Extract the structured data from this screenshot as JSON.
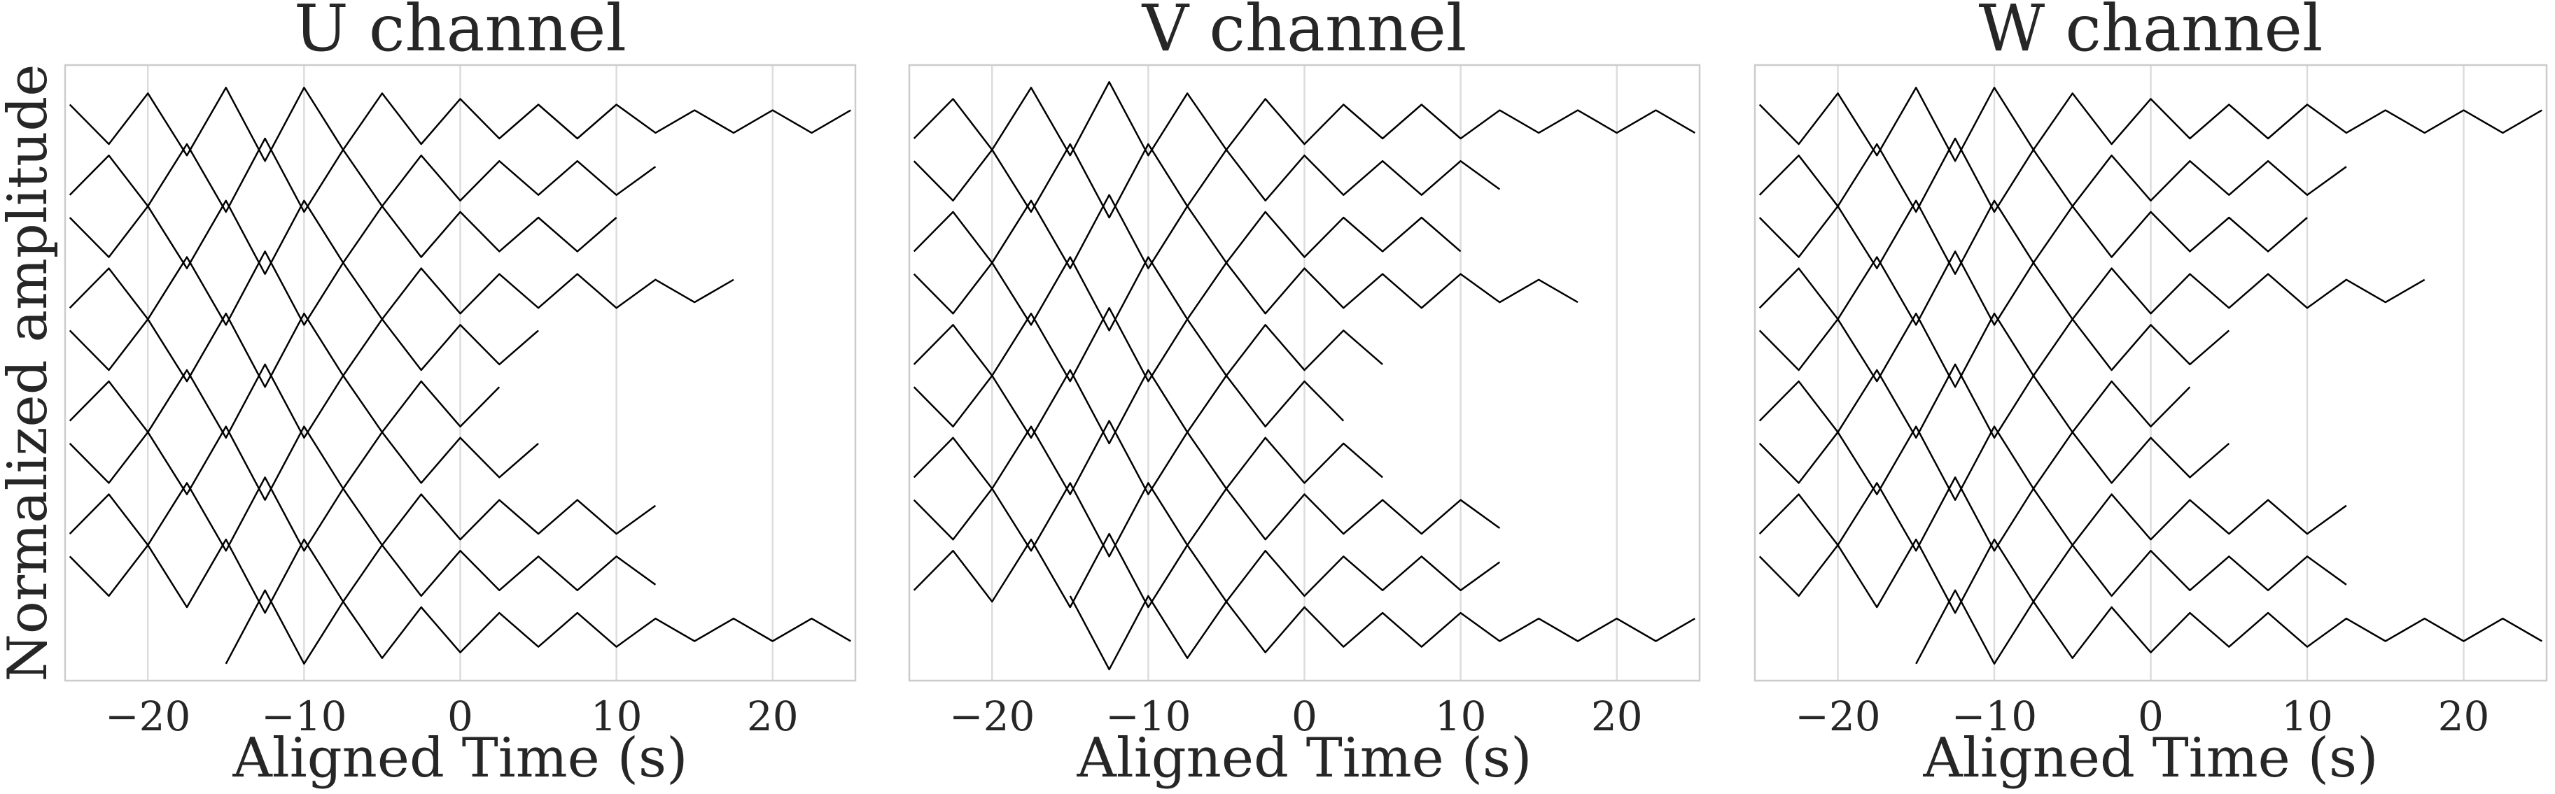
{
  "chart_data": [
    {
      "type": "line",
      "title": "U channel",
      "xlabel": "Aligned Time (s)",
      "ylabel": "Normalized amplitude",
      "xlim": [
        -25.3,
        25.3
      ],
      "ylim": [
        -0.9,
        10
      ],
      "grid": true,
      "xticks": [
        {
          "value": -20,
          "label": "−20"
        },
        {
          "value": -10,
          "label": "−10"
        },
        0,
        10,
        20
      ],
      "x": [
        -25,
        -22.5,
        -20,
        -17.5,
        -15,
        -12.5,
        -10,
        -7.5,
        -5,
        -2.5,
        0,
        2.5,
        5,
        7.5,
        10,
        12.5,
        15,
        17.5,
        20,
        22.5,
        25
      ],
      "series": [
        {
          "color": "#000000",
          "values": [
            9.3,
            8.6,
            9.5,
            8.4,
            9.6,
            8.3,
            9.6,
            8.5,
            9.5,
            8.6,
            9.4,
            8.7,
            9.3,
            8.7,
            9.3,
            8.8,
            9.2,
            8.8,
            9.2,
            8.8,
            9.2
          ]
        },
        {
          "color": "#000000",
          "values": [
            7.7,
            8.4,
            7.5,
            8.6,
            7.4,
            8.7,
            7.4,
            8.5,
            7.5,
            8.4,
            7.6,
            8.3,
            7.7,
            8.3,
            7.7,
            8.2,
            null,
            null,
            null,
            null,
            null
          ]
        },
        {
          "color": "#000000",
          "values": [
            7.3,
            6.6,
            7.5,
            6.4,
            7.6,
            6.3,
            7.6,
            6.5,
            7.5,
            6.6,
            7.4,
            6.7,
            7.3,
            6.7,
            7.3,
            null,
            null,
            null,
            null,
            null,
            null
          ]
        },
        {
          "color": "#000000",
          "values": [
            5.7,
            6.4,
            5.5,
            6.6,
            5.4,
            6.7,
            5.4,
            6.5,
            5.5,
            6.4,
            5.6,
            6.3,
            5.7,
            6.3,
            5.7,
            6.2,
            5.8,
            6.2,
            null,
            null,
            null
          ]
        },
        {
          "color": "#000000",
          "values": [
            5.3,
            4.6,
            5.5,
            4.4,
            5.6,
            4.3,
            5.6,
            4.5,
            5.5,
            4.6,
            5.4,
            4.7,
            5.3,
            null,
            null,
            null,
            null,
            null,
            null,
            null,
            null
          ]
        },
        {
          "color": "#000000",
          "values": [
            3.7,
            4.4,
            3.5,
            4.6,
            3.4,
            4.7,
            3.4,
            4.5,
            3.5,
            4.4,
            3.6,
            4.3,
            null,
            null,
            null,
            null,
            null,
            null,
            null,
            null,
            null
          ]
        },
        {
          "color": "#000000",
          "values": [
            3.3,
            2.6,
            3.5,
            2.4,
            3.6,
            2.3,
            3.6,
            2.5,
            3.5,
            2.6,
            3.4,
            2.7,
            3.3,
            null,
            null,
            null,
            null,
            null,
            null,
            null,
            null
          ]
        },
        {
          "color": "#000000",
          "values": [
            1.7,
            2.4,
            1.5,
            2.6,
            1.4,
            2.7,
            1.4,
            2.5,
            1.5,
            2.4,
            1.6,
            2.3,
            1.7,
            2.3,
            1.7,
            2.2,
            null,
            null,
            null,
            null,
            null
          ]
        },
        {
          "color": "#000000",
          "values": [
            1.3,
            0.6,
            1.5,
            0.4,
            1.6,
            0.3,
            1.6,
            0.5,
            1.5,
            0.6,
            1.4,
            0.7,
            1.3,
            0.7,
            1.3,
            0.8,
            null,
            null,
            null,
            null,
            null
          ]
        },
        {
          "color": "#000000",
          "values": [
            null,
            null,
            null,
            null,
            -0.6,
            0.7,
            -0.6,
            0.5,
            -0.5,
            0.4,
            -0.4,
            0.3,
            -0.3,
            0.3,
            -0.3,
            0.2,
            -0.2,
            0.2,
            -0.2,
            0.2,
            -0.2
          ]
        }
      ]
    },
    {
      "type": "line",
      "title": "V channel",
      "xlabel": "Aligned Time (s)",
      "xlim": [
        -25.3,
        25.3
      ],
      "ylim": [
        -0.9,
        10
      ],
      "grid": true,
      "xticks": [
        {
          "value": -20,
          "label": "−20"
        },
        {
          "value": -10,
          "label": "−10"
        },
        0,
        10,
        20
      ],
      "x": [
        -25,
        -22.5,
        -20,
        -17.5,
        -15,
        -12.5,
        -10,
        -7.5,
        -5,
        -2.5,
        0,
        2.5,
        5,
        7.5,
        10,
        12.5,
        15,
        17.5,
        20,
        22.5,
        25
      ],
      "series": [
        {
          "color": "#000000",
          "values": [
            8.7,
            9.4,
            8.5,
            9.6,
            8.4,
            9.7,
            8.4,
            9.5,
            8.5,
            9.4,
            8.6,
            9.3,
            8.7,
            9.3,
            8.7,
            9.2,
            8.8,
            9.2,
            8.8,
            9.2,
            8.8
          ]
        },
        {
          "color": "#000000",
          "values": [
            8.3,
            7.6,
            8.5,
            7.4,
            8.6,
            7.3,
            8.6,
            7.5,
            8.5,
            7.6,
            8.4,
            7.7,
            8.3,
            7.7,
            8.3,
            7.8,
            null,
            null,
            null,
            null,
            null
          ]
        },
        {
          "color": "#000000",
          "values": [
            6.7,
            7.4,
            6.5,
            7.6,
            6.4,
            7.7,
            6.4,
            7.5,
            6.5,
            7.4,
            6.6,
            7.3,
            6.7,
            7.3,
            6.7,
            null,
            null,
            null,
            null,
            null,
            null
          ]
        },
        {
          "color": "#000000",
          "values": [
            6.3,
            5.6,
            6.5,
            5.4,
            6.6,
            5.3,
            6.6,
            5.5,
            6.5,
            5.6,
            6.4,
            5.7,
            6.3,
            5.7,
            6.3,
            5.8,
            6.2,
            5.8,
            null,
            null,
            null
          ]
        },
        {
          "color": "#000000",
          "values": [
            4.7,
            5.4,
            4.5,
            5.6,
            4.4,
            5.7,
            4.4,
            5.5,
            4.5,
            5.4,
            4.6,
            5.3,
            4.7,
            null,
            null,
            null,
            null,
            null,
            null,
            null,
            null
          ]
        },
        {
          "color": "#000000",
          "values": [
            4.3,
            3.6,
            4.5,
            3.4,
            4.6,
            3.3,
            4.6,
            3.5,
            4.5,
            3.6,
            4.4,
            3.7,
            null,
            null,
            null,
            null,
            null,
            null,
            null,
            null,
            null
          ]
        },
        {
          "color": "#000000",
          "values": [
            2.7,
            3.4,
            2.5,
            3.6,
            2.4,
            3.7,
            2.4,
            3.5,
            2.5,
            3.4,
            2.6,
            3.3,
            2.7,
            null,
            null,
            null,
            null,
            null,
            null,
            null,
            null
          ]
        },
        {
          "color": "#000000",
          "values": [
            2.3,
            1.6,
            2.5,
            1.4,
            2.6,
            1.3,
            2.6,
            1.5,
            2.5,
            1.6,
            2.4,
            1.7,
            2.3,
            1.7,
            2.3,
            1.8,
            null,
            null,
            null,
            null,
            null
          ]
        },
        {
          "color": "#000000",
          "values": [
            0.7,
            1.4,
            0.5,
            1.6,
            0.4,
            1.7,
            0.4,
            1.5,
            0.5,
            1.4,
            0.6,
            1.3,
            0.7,
            1.3,
            0.7,
            1.2,
            null,
            null,
            null,
            null,
            null
          ]
        },
        {
          "color": "#000000",
          "values": [
            null,
            null,
            null,
            null,
            0.6,
            -0.7,
            0.6,
            -0.5,
            0.5,
            -0.4,
            0.4,
            -0.3,
            0.3,
            -0.3,
            0.3,
            -0.2,
            0.2,
            -0.2,
            0.2,
            -0.2,
            0.2
          ]
        }
      ]
    },
    {
      "type": "line",
      "title": "W channel",
      "xlabel": "Aligned Time (s)",
      "xlim": [
        -25.3,
        25.3
      ],
      "ylim": [
        -0.9,
        10
      ],
      "grid": true,
      "xticks": [
        {
          "value": -20,
          "label": "−20"
        },
        {
          "value": -10,
          "label": "−10"
        },
        0,
        10,
        20
      ],
      "x": [
        -25,
        -22.5,
        -20,
        -17.5,
        -15,
        -12.5,
        -10,
        -7.5,
        -5,
        -2.5,
        0,
        2.5,
        5,
        7.5,
        10,
        12.5,
        15,
        17.5,
        20,
        22.5,
        25
      ],
      "series": [
        {
          "color": "#000000",
          "values": [
            9.3,
            8.6,
            9.5,
            8.4,
            9.6,
            8.3,
            9.6,
            8.5,
            9.5,
            8.6,
            9.4,
            8.7,
            9.3,
            8.7,
            9.3,
            8.8,
            9.2,
            8.8,
            9.2,
            8.8,
            9.2
          ]
        },
        {
          "color": "#000000",
          "values": [
            7.7,
            8.4,
            7.5,
            8.6,
            7.4,
            8.7,
            7.4,
            8.5,
            7.5,
            8.4,
            7.6,
            8.3,
            7.7,
            8.3,
            7.7,
            8.2,
            null,
            null,
            null,
            null,
            null
          ]
        },
        {
          "color": "#000000",
          "values": [
            7.3,
            6.6,
            7.5,
            6.4,
            7.6,
            6.3,
            7.6,
            6.5,
            7.5,
            6.6,
            7.4,
            6.7,
            7.3,
            6.7,
            7.3,
            null,
            null,
            null,
            null,
            null,
            null
          ]
        },
        {
          "color": "#000000",
          "values": [
            5.7,
            6.4,
            5.5,
            6.6,
            5.4,
            6.7,
            5.4,
            6.5,
            5.5,
            6.4,
            5.6,
            6.3,
            5.7,
            6.3,
            5.7,
            6.2,
            5.8,
            6.2,
            null,
            null,
            null
          ]
        },
        {
          "color": "#000000",
          "values": [
            5.3,
            4.6,
            5.5,
            4.4,
            5.6,
            4.3,
            5.6,
            4.5,
            5.5,
            4.6,
            5.4,
            4.7,
            5.3,
            null,
            null,
            null,
            null,
            null,
            null,
            null,
            null
          ]
        },
        {
          "color": "#000000",
          "values": [
            3.7,
            4.4,
            3.5,
            4.6,
            3.4,
            4.7,
            3.4,
            4.5,
            3.5,
            4.4,
            3.6,
            4.3,
            null,
            null,
            null,
            null,
            null,
            null,
            null,
            null,
            null
          ]
        },
        {
          "color": "#000000",
          "values": [
            3.3,
            2.6,
            3.5,
            2.4,
            3.6,
            2.3,
            3.6,
            2.5,
            3.5,
            2.6,
            3.4,
            2.7,
            3.3,
            null,
            null,
            null,
            null,
            null,
            null,
            null,
            null
          ]
        },
        {
          "color": "#000000",
          "values": [
            1.7,
            2.4,
            1.5,
            2.6,
            1.4,
            2.7,
            1.4,
            2.5,
            1.5,
            2.4,
            1.6,
            2.3,
            1.7,
            2.3,
            1.7,
            2.2,
            null,
            null,
            null,
            null,
            null
          ]
        },
        {
          "color": "#000000",
          "values": [
            1.3,
            0.6,
            1.5,
            0.4,
            1.6,
            0.3,
            1.6,
            0.5,
            1.5,
            0.6,
            1.4,
            0.7,
            1.3,
            0.7,
            1.3,
            0.8,
            null,
            null,
            null,
            null,
            null
          ]
        },
        {
          "color": "#000000",
          "values": [
            null,
            null,
            null,
            null,
            -0.6,
            0.7,
            -0.6,
            0.5,
            -0.5,
            0.4,
            -0.4,
            0.3,
            -0.3,
            0.3,
            -0.3,
            0.2,
            -0.2,
            0.2,
            -0.2,
            0.2,
            -0.2
          ]
        }
      ]
    }
  ]
}
